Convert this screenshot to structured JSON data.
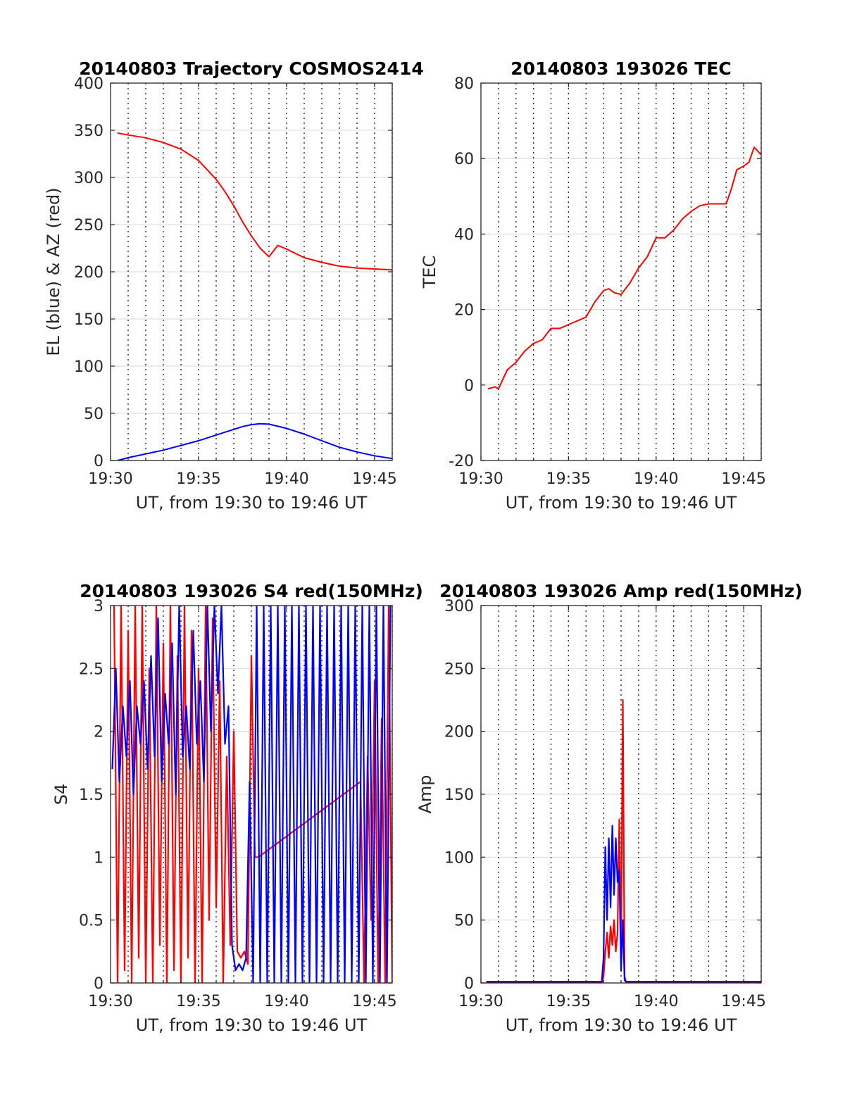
{
  "chart_data": [
    {
      "type": "line",
      "title": "20140803 Trajectory COSMOS2414",
      "xlabel": "UT, from 19:30 to 19:46 UT",
      "ylabel": "EL (blue) & AZ (red)",
      "x_unit": "minutes after 19:30",
      "xlim": [
        0,
        16
      ],
      "ylim": [
        0,
        400
      ],
      "yticks": [
        0,
        50,
        100,
        150,
        200,
        250,
        300,
        350,
        400
      ],
      "xticks": [
        "19:30",
        "19:35",
        "19:40",
        "19:45"
      ],
      "x_dotted_grid": [
        1,
        2,
        3,
        4,
        5,
        6,
        7,
        8,
        9,
        10,
        11,
        12,
        13,
        14,
        15,
        16
      ],
      "colors": {
        "EL": "#0000ff",
        "AZ": "#ff0000"
      },
      "series": [
        {
          "color": "#ff0000",
          "x": [
            0.4,
            1,
            2,
            3,
            4,
            5,
            6,
            6.5,
            7,
            7.5,
            8,
            8.5,
            9,
            9.5,
            10,
            11,
            12,
            13,
            14,
            15,
            16
          ],
          "values": [
            347,
            345,
            342,
            337,
            330,
            318,
            298,
            285,
            270,
            253,
            238,
            225,
            216,
            228,
            224,
            215,
            210,
            206,
            204,
            203,
            202
          ]
        },
        {
          "color": "#0000ff",
          "x": [
            0.4,
            1,
            2,
            3,
            4,
            5,
            6,
            7,
            7.5,
            8,
            8.5,
            9,
            10,
            11,
            12,
            13,
            14,
            15,
            16
          ],
          "values": [
            0,
            3,
            7,
            11,
            16,
            21,
            27,
            33,
            36,
            38,
            39,
            38.5,
            34,
            28,
            21,
            14,
            9,
            5,
            2
          ]
        }
      ]
    },
    {
      "type": "line",
      "title": "20140803 193026 TEC",
      "xlabel": "UT, from 19:30 to 19:46 UT",
      "ylabel": "TEC",
      "x_unit": "minutes after 19:30",
      "xlim": [
        0,
        16
      ],
      "ylim": [
        -20,
        80
      ],
      "yticks": [
        -20,
        0,
        20,
        40,
        60,
        80
      ],
      "xticks": [
        "19:30",
        "19:35",
        "19:40",
        "19:45"
      ],
      "x_dotted_grid": [
        1,
        2,
        3,
        4,
        5,
        6,
        7,
        8,
        9,
        10,
        11,
        12,
        13,
        14,
        15,
        16
      ],
      "series": [
        {
          "color": "#ff0000",
          "x": [
            0.4,
            0.8,
            1.0,
            1.5,
            2.0,
            2.5,
            3.0,
            3.5,
            4.0,
            4.5,
            5.0,
            5.5,
            6.0,
            6.5,
            7.0,
            7.3,
            7.6,
            8.0,
            8.5,
            9.0,
            9.5,
            10.0,
            10.5,
            11.0,
            11.5,
            12.0,
            12.5,
            13.0,
            13.5,
            14.0,
            14.3,
            14.6,
            15.0,
            15.3,
            15.6,
            16.0
          ],
          "values": [
            -1,
            -0.5,
            -1,
            4,
            6,
            9,
            11,
            12,
            15,
            15,
            16,
            17,
            18,
            22,
            25,
            25.5,
            24.5,
            24,
            27,
            31,
            34,
            39,
            39,
            41,
            44,
            46,
            47.5,
            48,
            48,
            48,
            52,
            57,
            58,
            59,
            63,
            61
          ]
        }
      ]
    },
    {
      "type": "line",
      "title": "20140803 193026 S4 red(150MHz)",
      "xlabel": "UT, from 19:30 to 19:46 UT",
      "ylabel": "S4",
      "x_unit": "minutes after 19:30",
      "xlim": [
        0,
        16
      ],
      "ylim": [
        0,
        3
      ],
      "yticks": [
        0,
        0.5,
        1,
        1.5,
        2,
        2.5,
        3
      ],
      "ytick_labels": [
        "0",
        "0.5",
        "1",
        "1.5",
        "2",
        "2.5",
        "3"
      ],
      "xticks": [
        "19:30",
        "19:35",
        "19:40",
        "19:45"
      ],
      "x_dotted_grid": [
        1,
        2,
        3,
        4,
        5,
        6,
        7,
        8,
        9,
        10,
        11,
        12,
        13,
        14,
        15,
        16
      ],
      "series": [
        {
          "color": "#ff0000",
          "x": [
            0.2,
            0.4,
            0.6,
            0.8,
            1.0,
            1.2,
            1.4,
            1.6,
            1.8,
            2.0,
            2.2,
            2.4,
            2.6,
            2.8,
            3.0,
            3.2,
            3.4,
            3.6,
            3.8,
            4.0,
            4.2,
            4.4,
            4.6,
            4.8,
            5.0,
            5.2,
            5.4,
            5.6,
            5.8,
            6.0,
            6.2,
            6.4,
            6.6,
            6.8,
            7.0,
            7.2,
            7.4,
            7.6,
            7.8,
            8.0,
            8.2,
            8.4,
            14.2,
            14.4,
            14.6,
            14.8,
            15.0,
            15.2,
            15.4,
            15.6,
            15.8,
            16.0
          ],
          "values": [
            3,
            0,
            3,
            0.1,
            2.8,
            0,
            3,
            0.2,
            3,
            0,
            2.5,
            0,
            3,
            0.3,
            2.7,
            0,
            3,
            0.1,
            2.6,
            0,
            3,
            0.2,
            2.8,
            0,
            2.5,
            0,
            3,
            0.5,
            2.9,
            0.6,
            2.4,
            0,
            1.8,
            0.3,
            2.0,
            0.25,
            0.2,
            0.25,
            0.15,
            2.6,
            1.0,
            1.0,
            1.6,
            0,
            1.8,
            0.5,
            2.4,
            0,
            2.1,
            0,
            3,
            0
          ],
          "note_hidden": null
        },
        {
          "color": "#0000ff",
          "x": [
            0.1,
            0.3,
            0.5,
            0.7,
            0.9,
            1.1,
            1.3,
            1.5,
            1.7,
            1.9,
            2.1,
            2.3,
            2.5,
            2.7,
            2.9,
            3.1,
            3.3,
            3.5,
            3.7,
            3.9,
            4.1,
            4.3,
            4.5,
            4.7,
            4.9,
            5.1,
            5.3,
            5.5,
            5.7,
            5.9,
            6.1,
            6.3,
            6.5,
            6.7,
            6.9,
            7.1,
            7.3,
            7.5,
            7.7,
            7.9,
            8.1,
            8.3,
            8.5,
            8.7,
            8.9,
            9.1,
            9.3,
            9.5,
            9.7,
            9.9,
            10.1,
            10.3,
            10.5,
            10.7,
            10.9,
            11.1,
            11.3,
            11.5,
            11.7,
            11.9,
            12.1,
            12.3,
            12.5,
            12.7,
            12.9,
            13.1,
            13.3,
            13.5,
            13.7,
            13.9,
            14.1,
            14.3,
            14.5,
            14.7,
            14.9,
            15.1,
            15.3,
            15.5,
            15.7,
            15.9
          ],
          "values": [
            1.7,
            2.5,
            1.6,
            2.2,
            1.8,
            2.4,
            1.5,
            2.2,
            1.9,
            2.4,
            1.7,
            2.6,
            1.8,
            2.9,
            1.6,
            2.3,
            1.9,
            2.7,
            1.5,
            3.0,
            1.8,
            2.2,
            1.7,
            2.8,
            1.9,
            2.4,
            1.6,
            3.0,
            2.0,
            3.0,
            2.3,
            3.0,
            1.9,
            2.2,
            0.3,
            0.1,
            0.15,
            0.1,
            0.2,
            1.6,
            0.0,
            3.0,
            0.0,
            3.0,
            0.0,
            3.0,
            0.0,
            3.0,
            0.0,
            3.0,
            0.0,
            3.0,
            0.0,
            3.0,
            0.0,
            3.0,
            0.0,
            3.0,
            0.0,
            3.0,
            0.0,
            3.0,
            0.0,
            3.0,
            0.0,
            3.0,
            0.0,
            3.0,
            0.0,
            3.0,
            0.0,
            3.0,
            0.0,
            3.0,
            0.0,
            3.0,
            0.0,
            3.0,
            0.0,
            3.0
          ]
        }
      ]
    },
    {
      "type": "line",
      "title": "20140803 193026 Amp red(150MHz)",
      "xlabel": "UT, from 19:30 to 19:46 UT",
      "ylabel": "Amp",
      "x_unit": "minutes after 19:30",
      "xlim": [
        0,
        16
      ],
      "ylim": [
        0,
        300
      ],
      "yticks": [
        0,
        50,
        100,
        150,
        200,
        250,
        300
      ],
      "xticks": [
        "19:30",
        "19:35",
        "19:40",
        "19:45"
      ],
      "x_dotted_grid": [
        1,
        2,
        3,
        4,
        5,
        6,
        7,
        8,
        9,
        10,
        11,
        12,
        13,
        14,
        15,
        16
      ],
      "series": [
        {
          "color": "#ff0000",
          "x": [
            0.3,
            6.9,
            7.0,
            7.1,
            7.2,
            7.3,
            7.4,
            7.5,
            7.6,
            7.7,
            7.8,
            7.9,
            8.0,
            8.1,
            8.2,
            8.3,
            8.4,
            16.0
          ],
          "values": [
            0,
            0,
            5,
            25,
            40,
            20,
            45,
            30,
            50,
            25,
            40,
            130,
            20,
            225,
            5,
            0,
            0,
            0
          ]
        },
        {
          "color": "#0000ff",
          "x": [
            0.3,
            6.9,
            7.0,
            7.1,
            7.2,
            7.3,
            7.4,
            7.5,
            7.6,
            7.7,
            7.8,
            7.9,
            8.0,
            8.1,
            8.2,
            8.3,
            8.4,
            16.0
          ],
          "values": [
            1,
            1,
            20,
            108,
            50,
            115,
            60,
            125,
            70,
            115,
            80,
            90,
            10,
            50,
            2,
            1,
            1,
            1
          ]
        }
      ]
    }
  ]
}
